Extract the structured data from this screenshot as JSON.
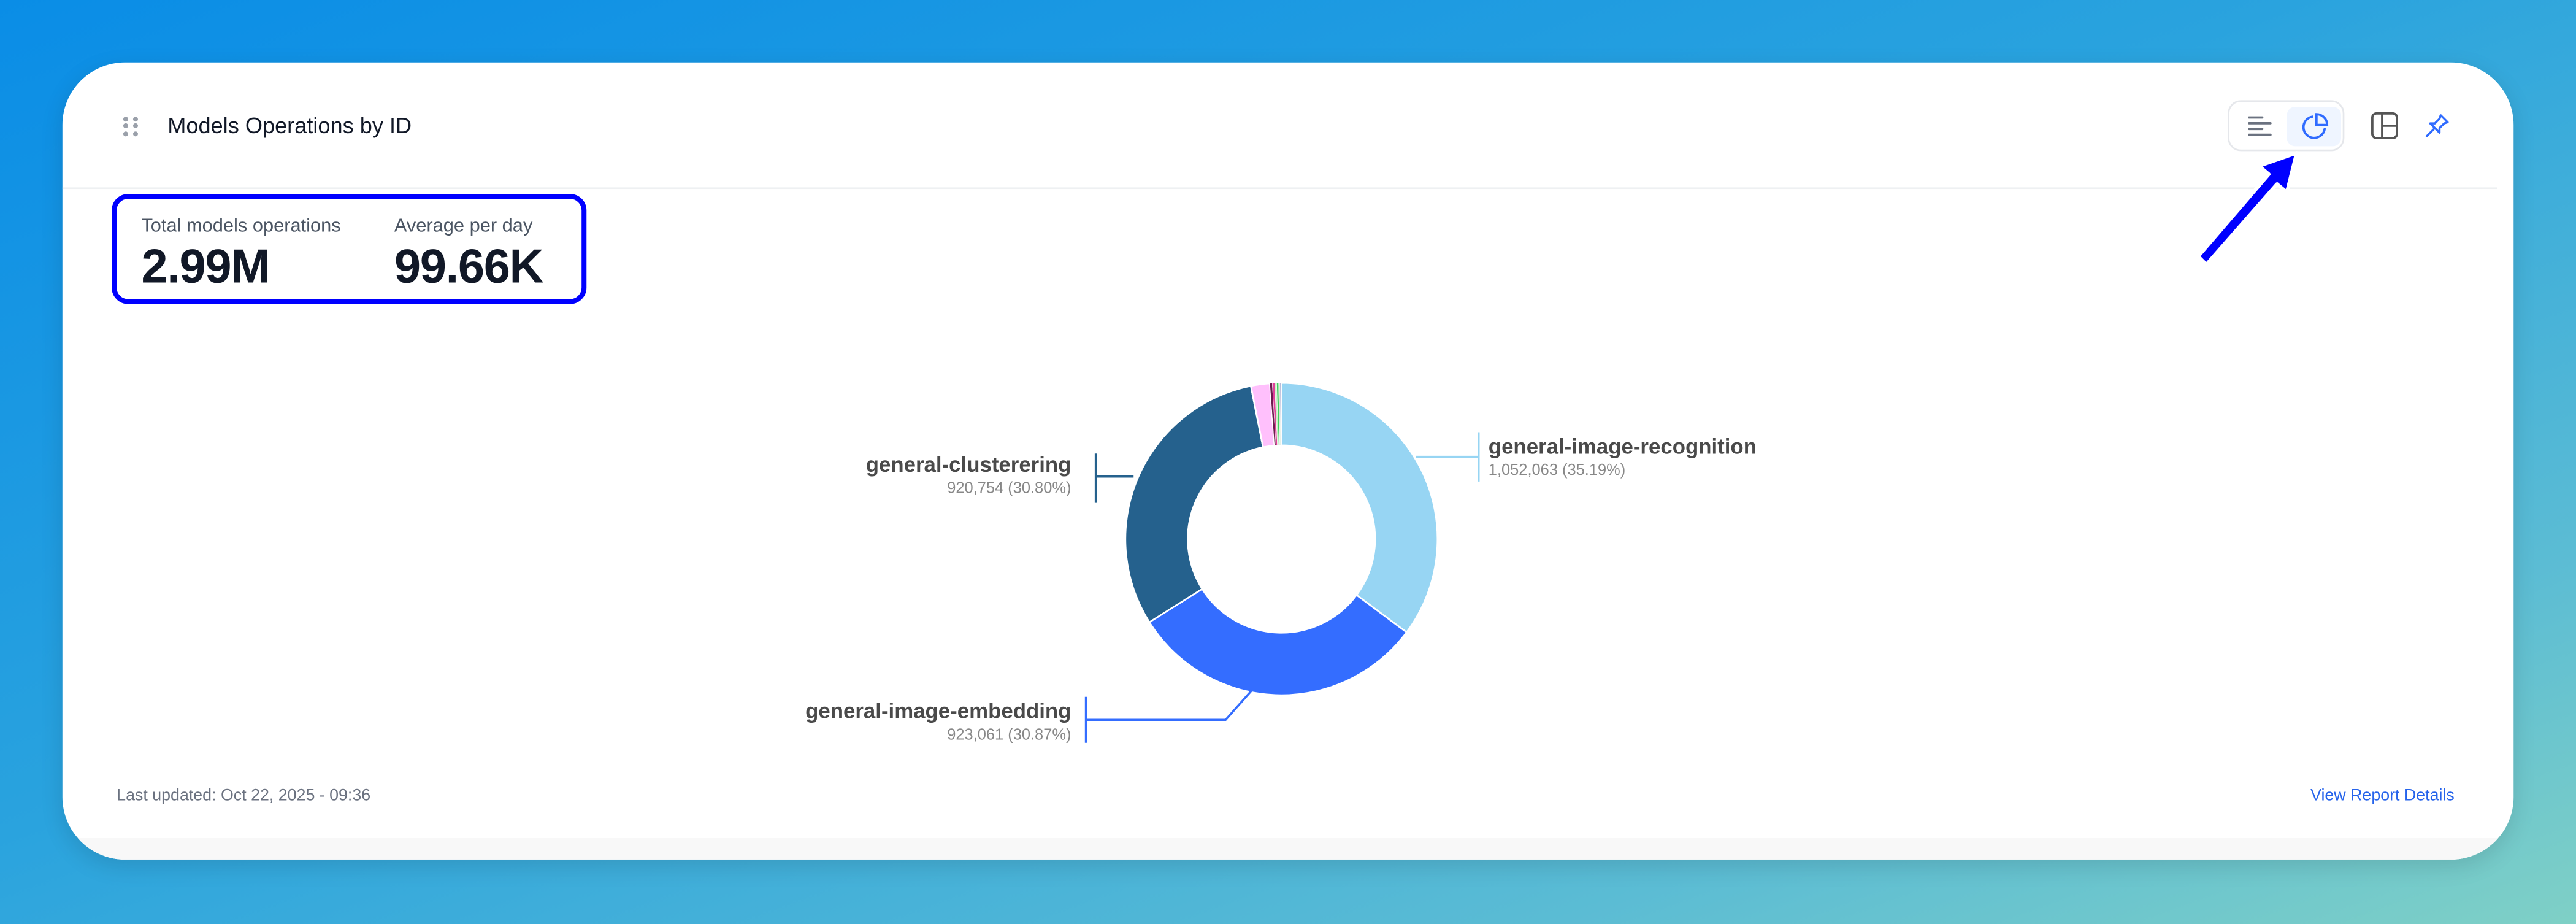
{
  "widget": {
    "title": "Models Operations by ID",
    "drag_handle_icon": "drag-dots-icon",
    "view_toggle": {
      "options": [
        {
          "icon": "bar-list-icon",
          "active": false
        },
        {
          "icon": "pie-chart-icon",
          "active": true
        }
      ]
    },
    "layout_icon": "layout-grid-icon",
    "pin_icon": "pin-icon"
  },
  "stats": {
    "total_label": "Total models operations",
    "total_value": "2.99M",
    "average_label": "Average per day",
    "average_value": "99.66K"
  },
  "chart_data": {
    "type": "pie",
    "donut": true,
    "slices": [
      {
        "name": "general-image-recognition",
        "value": 1052063,
        "percent": 35.19,
        "value_label": "1,052,063 (35.19%)",
        "color": "#97d5f3"
      },
      {
        "name": "general-image-embedding",
        "value": 923061,
        "percent": 30.87,
        "value_label": "923,061 (30.87%)",
        "color": "#346dff"
      },
      {
        "name": "general-clusterering",
        "value": 920754,
        "percent": 30.8,
        "value_label": "920,754 (30.80%)",
        "color": "#25618d"
      },
      {
        "name": "",
        "percent": 1.95,
        "color": "#ffc0fc"
      },
      {
        "name": "",
        "percent": 0.25,
        "color": "#6b1d4e"
      },
      {
        "name": "",
        "percent": 0.25,
        "color": "#e0409a"
      },
      {
        "name": "",
        "percent": 0.2,
        "color": "#c9f0c4"
      },
      {
        "name": "",
        "percent": 0.2,
        "color": "#3ecf5e"
      },
      {
        "name": "",
        "percent": 0.15,
        "color": "#d6e6d2"
      },
      {
        "name": "",
        "percent": 0.14,
        "color": "#8a8fbf"
      }
    ]
  },
  "footer": {
    "last_updated": "Last updated: Oct 22, 2025 - 09:36",
    "view_details": "View Report Details"
  },
  "annotations": {
    "highlight_color": "#0000ff"
  }
}
